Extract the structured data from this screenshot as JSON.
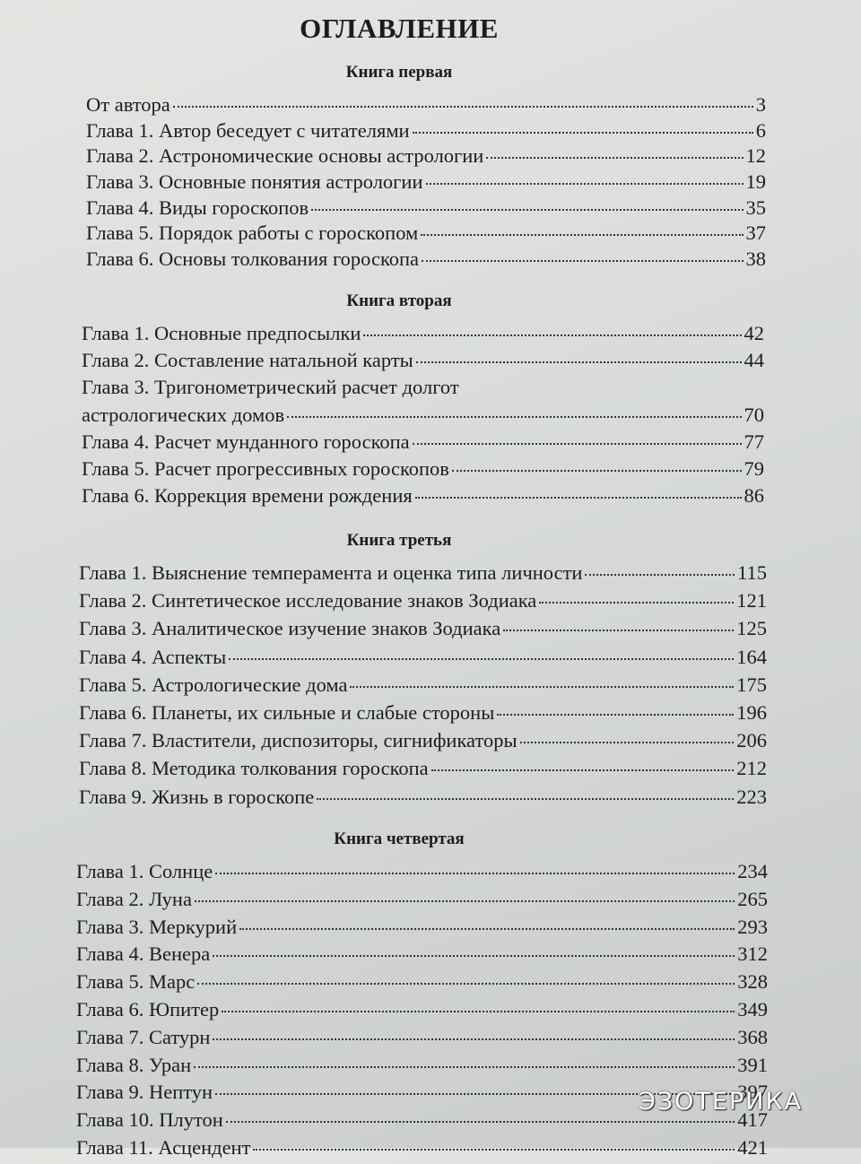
{
  "title": "ОГЛАВЛЕНИЕ",
  "sections": [
    {
      "heading": "Книга первая",
      "entries": [
        {
          "label": "От автора",
          "page": 3
        },
        {
          "label": "Глава 1. Автор беседует с читателями",
          "page": 6
        },
        {
          "label": "Глава 2. Астрономические основы астрологии",
          "page": 12
        },
        {
          "label": "Глава 3. Основные понятия астрологии",
          "page": 19
        },
        {
          "label": "Глава 4. Виды гороскопов",
          "page": 35
        },
        {
          "label": "Глава 5. Порядок работы с гороскопом",
          "page": 37
        },
        {
          "label": "Глава 6. Основы толкования гороскопа",
          "page": 38
        }
      ]
    },
    {
      "heading": "Книга вторая",
      "entries": [
        {
          "label": "Глава 1. Основные предпосылки",
          "page": 42
        },
        {
          "label": "Глава 2. Составление натальной карты",
          "page": 44
        },
        {
          "label": "Глава 3. Тригонометрический расчет долгот",
          "label_cont": "астрологических домов",
          "page": 70
        },
        {
          "label": "Глава 4. Расчет мунданного гороскопа",
          "page": 77
        },
        {
          "label": "Глава 5. Расчет прогрессивных гороскопов",
          "page": 79
        },
        {
          "label": "Глава 6. Коррекция времени рождения",
          "page": 86
        }
      ]
    },
    {
      "heading": "Книга третья",
      "entries": [
        {
          "label": "Глава 1. Выяснение темперамента и оценка типа личности",
          "page": 115
        },
        {
          "label": "Глава 2. Синтетическое исследование знаков Зодиака",
          "page": 121
        },
        {
          "label": "Глава 3. Аналитическое изучение знаков Зодиака",
          "page": 125
        },
        {
          "label": "Глава 4. Аспекты",
          "page": 164
        },
        {
          "label": "Глава 5. Астрологические дома",
          "page": 175
        },
        {
          "label": "Глава 6. Планеты, их сильные и слабые стороны",
          "page": 196
        },
        {
          "label": "Глава 7. Властители, диспозиторы, сигнификаторы",
          "page": 206
        },
        {
          "label": "Глава 8. Методика толкования гороскопа",
          "page": 212
        },
        {
          "label": "Глава 9. Жизнь в гороскопе",
          "page": 223
        }
      ]
    },
    {
      "heading": "Книга четвертая",
      "entries": [
        {
          "label": "Глава 1. Солнце",
          "page": 234
        },
        {
          "label": "Глава 2. Луна",
          "page": 265
        },
        {
          "label": "Глава 3. Меркурий",
          "page": 293
        },
        {
          "label": "Глава 4. Венера",
          "page": 312
        },
        {
          "label": "Глава 5. Марс",
          "page": 328
        },
        {
          "label": "Глава 6. Юпитер",
          "page": 349
        },
        {
          "label": "Глава 7. Сатурн",
          "page": 368
        },
        {
          "label": "Глава 8. Уран",
          "page": 391
        },
        {
          "label": "Глава 9. Нептун",
          "page": 397
        },
        {
          "label": "Глава 10. Плутон",
          "page": 417
        },
        {
          "label": "Глава 11. Асцендент",
          "page": 421
        }
      ]
    }
  ],
  "watermark": "ЭЗОТЕРИКА"
}
